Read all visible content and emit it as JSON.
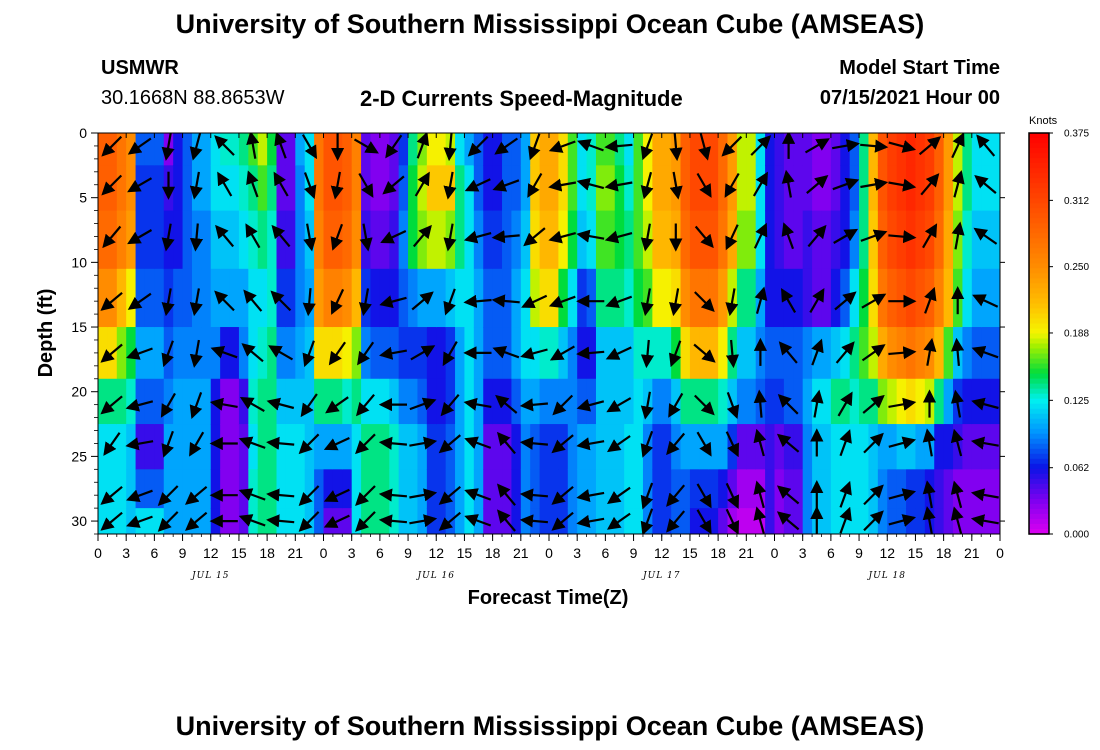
{
  "header": {
    "title_top": "University of Southern Mississippi Ocean Cube (AMSEAS)",
    "title_bottom": "University of Southern Mississippi Ocean Cube (AMSEAS)",
    "station": "USMWR",
    "coords": "30.1668N  88.8653W",
    "subtitle": "2-D Currents Speed-Magnitude",
    "model_start_label": "Model Start Time",
    "model_start_value": "07/15/2021 Hour 00"
  },
  "chart_data": {
    "type": "heatmap",
    "title": "2-D Currents Speed-Magnitude",
    "xlabel": "Forecast Time(Z)",
    "ylabel": "Depth (ft)",
    "x_hours_range": [
      0,
      96
    ],
    "ylim": [
      0,
      31
    ],
    "x_tick_labels": [
      "0",
      "3",
      "6",
      "9",
      "12",
      "15",
      "18",
      "21",
      "0",
      "3",
      "6",
      "9",
      "12",
      "15",
      "18",
      "21",
      "0",
      "3",
      "6",
      "9",
      "12",
      "15",
      "18",
      "21",
      "0",
      "3",
      "6",
      "9",
      "12",
      "15",
      "18",
      "21",
      "0"
    ],
    "day_labels": [
      {
        "label": "JUL 15",
        "hour": 12
      },
      {
        "label": "JUL 16",
        "hour": 36
      },
      {
        "label": "JUL 17",
        "hour": 60
      },
      {
        "label": "JUL 18",
        "hour": 84
      }
    ],
    "y_ticks": [
      0,
      5,
      10,
      15,
      20,
      25,
      30
    ],
    "colorbar": {
      "unit": "Knots",
      "min": 0.0,
      "max": 0.375,
      "tick_labels": [
        "0.375",
        "0.312",
        "0.250",
        "0.188",
        "0.125",
        "0.062",
        "0.000"
      ],
      "tick_values": [
        0.375,
        0.312,
        0.25,
        0.188,
        0.125,
        0.062,
        0.0
      ]
    },
    "depth_levels_ft": [
      1,
      4,
      8,
      13,
      17,
      21,
      24,
      28,
      30
    ],
    "speed_grid_columns_hourly": [
      [
        0.29,
        0.29,
        0.28,
        0.25,
        0.2,
        0.14,
        0.12,
        0.12,
        0.12
      ],
      [
        0.29,
        0.29,
        0.28,
        0.25,
        0.2,
        0.14,
        0.12,
        0.12,
        0.12
      ],
      [
        0.27,
        0.27,
        0.26,
        0.22,
        0.17,
        0.14,
        0.12,
        0.12,
        0.12
      ],
      [
        0.25,
        0.25,
        0.24,
        0.19,
        0.15,
        0.13,
        0.11,
        0.11,
        0.11
      ],
      [
        0.08,
        0.07,
        0.07,
        0.08,
        0.1,
        0.08,
        0.05,
        0.08,
        0.12
      ],
      [
        0.08,
        0.07,
        0.07,
        0.08,
        0.1,
        0.08,
        0.05,
        0.08,
        0.12
      ],
      [
        0.08,
        0.07,
        0.07,
        0.08,
        0.1,
        0.08,
        0.05,
        0.08,
        0.12
      ],
      [
        0.03,
        0.05,
        0.06,
        0.07,
        0.08,
        0.09,
        0.1,
        0.1,
        0.1
      ],
      [
        0.06,
        0.06,
        0.06,
        0.08,
        0.09,
        0.1,
        0.1,
        0.1,
        0.1
      ],
      [
        0.08,
        0.08,
        0.08,
        0.08,
        0.09,
        0.1,
        0.1,
        0.1,
        0.1
      ],
      [
        0.1,
        0.1,
        0.09,
        0.09,
        0.09,
        0.1,
        0.1,
        0.1,
        0.1
      ],
      [
        0.1,
        0.1,
        0.09,
        0.09,
        0.09,
        0.1,
        0.1,
        0.1,
        0.1
      ],
      [
        0.12,
        0.12,
        0.11,
        0.1,
        0.09,
        0.06,
        0.06,
        0.06,
        0.06
      ],
      [
        0.13,
        0.12,
        0.11,
        0.1,
        0.06,
        0.03,
        0.03,
        0.03,
        0.03
      ],
      [
        0.13,
        0.12,
        0.11,
        0.1,
        0.06,
        0.03,
        0.03,
        0.03,
        0.03
      ],
      [
        0.14,
        0.13,
        0.12,
        0.1,
        0.09,
        0.05,
        0.04,
        0.04,
        0.04
      ],
      [
        0.16,
        0.14,
        0.13,
        0.12,
        0.12,
        0.13,
        0.12,
        0.13,
        0.13
      ],
      [
        0.18,
        0.16,
        0.14,
        0.12,
        0.13,
        0.14,
        0.14,
        0.14,
        0.14
      ],
      [
        0.15,
        0.14,
        0.13,
        0.13,
        0.14,
        0.14,
        0.14,
        0.14,
        0.14
      ],
      [
        0.04,
        0.04,
        0.05,
        0.07,
        0.09,
        0.11,
        0.12,
        0.12,
        0.12
      ],
      [
        0.04,
        0.04,
        0.05,
        0.07,
        0.09,
        0.11,
        0.12,
        0.12,
        0.12
      ],
      [
        0.1,
        0.09,
        0.09,
        0.09,
        0.1,
        0.11,
        0.12,
        0.12,
        0.12
      ],
      [
        0.12,
        0.12,
        0.11,
        0.1,
        0.11,
        0.11,
        0.11,
        0.11,
        0.11
      ],
      [
        0.27,
        0.27,
        0.26,
        0.24,
        0.2,
        0.14,
        0.1,
        0.08,
        0.08
      ],
      [
        0.3,
        0.3,
        0.29,
        0.26,
        0.2,
        0.14,
        0.1,
        0.06,
        0.04
      ],
      [
        0.3,
        0.3,
        0.29,
        0.26,
        0.2,
        0.14,
        0.1,
        0.06,
        0.04
      ],
      [
        0.29,
        0.29,
        0.28,
        0.25,
        0.19,
        0.13,
        0.1,
        0.06,
        0.04
      ],
      [
        0.26,
        0.26,
        0.25,
        0.22,
        0.17,
        0.14,
        0.12,
        0.12,
        0.12
      ],
      [
        0.04,
        0.04,
        0.05,
        0.07,
        0.09,
        0.12,
        0.14,
        0.14,
        0.14
      ],
      [
        0.03,
        0.03,
        0.04,
        0.06,
        0.08,
        0.12,
        0.14,
        0.14,
        0.14
      ],
      [
        0.03,
        0.03,
        0.04,
        0.06,
        0.08,
        0.12,
        0.14,
        0.14,
        0.14
      ],
      [
        0.04,
        0.04,
        0.05,
        0.06,
        0.08,
        0.11,
        0.13,
        0.13,
        0.13
      ],
      [
        0.07,
        0.08,
        0.09,
        0.08,
        0.07,
        0.09,
        0.11,
        0.11,
        0.11
      ],
      [
        0.14,
        0.15,
        0.15,
        0.09,
        0.07,
        0.09,
        0.11,
        0.11,
        0.11
      ],
      [
        0.17,
        0.18,
        0.17,
        0.1,
        0.07,
        0.08,
        0.1,
        0.1,
        0.1
      ],
      [
        0.19,
        0.21,
        0.18,
        0.1,
        0.06,
        0.06,
        0.07,
        0.07,
        0.07
      ],
      [
        0.19,
        0.21,
        0.18,
        0.1,
        0.06,
        0.06,
        0.07,
        0.07,
        0.07
      ],
      [
        0.18,
        0.21,
        0.17,
        0.11,
        0.07,
        0.07,
        0.08,
        0.08,
        0.08
      ],
      [
        0.12,
        0.14,
        0.14,
        0.12,
        0.1,
        0.1,
        0.1,
        0.1,
        0.1
      ],
      [
        0.1,
        0.12,
        0.12,
        0.12,
        0.12,
        0.12,
        0.12,
        0.12,
        0.12
      ],
      [
        0.08,
        0.08,
        0.09,
        0.1,
        0.1,
        0.1,
        0.1,
        0.1,
        0.1
      ],
      [
        0.06,
        0.06,
        0.07,
        0.08,
        0.08,
        0.06,
        0.04,
        0.04,
        0.04
      ],
      [
        0.06,
        0.06,
        0.07,
        0.08,
        0.08,
        0.06,
        0.04,
        0.04,
        0.04
      ],
      [
        0.08,
        0.08,
        0.08,
        0.08,
        0.08,
        0.06,
        0.04,
        0.04,
        0.04
      ],
      [
        0.08,
        0.08,
        0.09,
        0.1,
        0.1,
        0.08,
        0.06,
        0.06,
        0.06
      ],
      [
        0.1,
        0.1,
        0.11,
        0.12,
        0.12,
        0.1,
        0.09,
        0.09,
        0.09
      ],
      [
        0.21,
        0.21,
        0.2,
        0.18,
        0.12,
        0.1,
        0.08,
        0.08,
        0.08
      ],
      [
        0.23,
        0.23,
        0.22,
        0.2,
        0.13,
        0.09,
        0.07,
        0.07,
        0.07
      ],
      [
        0.23,
        0.23,
        0.22,
        0.2,
        0.13,
        0.09,
        0.07,
        0.07,
        0.07
      ],
      [
        0.2,
        0.2,
        0.19,
        0.15,
        0.11,
        0.09,
        0.07,
        0.07,
        0.07
      ],
      [
        0.16,
        0.16,
        0.15,
        0.12,
        0.09,
        0.09,
        0.09,
        0.09,
        0.09
      ],
      [
        0.12,
        0.12,
        0.11,
        0.07,
        0.06,
        0.08,
        0.1,
        0.1,
        0.1
      ],
      [
        0.13,
        0.13,
        0.12,
        0.08,
        0.06,
        0.08,
        0.1,
        0.1,
        0.1
      ],
      [
        0.16,
        0.17,
        0.16,
        0.14,
        0.11,
        0.11,
        0.11,
        0.11,
        0.11
      ],
      [
        0.16,
        0.17,
        0.16,
        0.14,
        0.11,
        0.11,
        0.11,
        0.11,
        0.11
      ],
      [
        0.14,
        0.15,
        0.15,
        0.14,
        0.11,
        0.11,
        0.11,
        0.11,
        0.11
      ],
      [
        0.12,
        0.13,
        0.14,
        0.13,
        0.11,
        0.11,
        0.12,
        0.12,
        0.12
      ],
      [
        0.16,
        0.16,
        0.16,
        0.15,
        0.13,
        0.12,
        0.12,
        0.12,
        0.12
      ],
      [
        0.19,
        0.19,
        0.18,
        0.16,
        0.13,
        0.11,
        0.09,
        0.09,
        0.09
      ],
      [
        0.23,
        0.23,
        0.22,
        0.19,
        0.13,
        0.09,
        0.07,
        0.07,
        0.07
      ],
      [
        0.23,
        0.23,
        0.22,
        0.19,
        0.13,
        0.09,
        0.07,
        0.07,
        0.07
      ],
      [
        0.24,
        0.24,
        0.23,
        0.2,
        0.15,
        0.11,
        0.09,
        0.08,
        0.08
      ],
      [
        0.29,
        0.29,
        0.28,
        0.25,
        0.2,
        0.14,
        0.1,
        0.08,
        0.08
      ],
      [
        0.31,
        0.31,
        0.3,
        0.27,
        0.22,
        0.14,
        0.1,
        0.07,
        0.06
      ],
      [
        0.31,
        0.31,
        0.3,
        0.27,
        0.22,
        0.14,
        0.1,
        0.07,
        0.06
      ],
      [
        0.31,
        0.31,
        0.3,
        0.27,
        0.22,
        0.14,
        0.1,
        0.07,
        0.06
      ],
      [
        0.28,
        0.28,
        0.27,
        0.24,
        0.19,
        0.13,
        0.1,
        0.06,
        0.04
      ],
      [
        0.24,
        0.24,
        0.23,
        0.18,
        0.14,
        0.11,
        0.07,
        0.04,
        0.02
      ],
      [
        0.18,
        0.18,
        0.17,
        0.14,
        0.11,
        0.09,
        0.04,
        0.02,
        0.01
      ],
      [
        0.18,
        0.18,
        0.17,
        0.14,
        0.11,
        0.09,
        0.04,
        0.02,
        0.01
      ],
      [
        0.12,
        0.12,
        0.12,
        0.1,
        0.09,
        0.08,
        0.04,
        0.02,
        0.01
      ],
      [
        0.06,
        0.06,
        0.06,
        0.06,
        0.08,
        0.07,
        0.05,
        0.05,
        0.05
      ],
      [
        0.05,
        0.05,
        0.05,
        0.06,
        0.08,
        0.07,
        0.04,
        0.03,
        0.03
      ],
      [
        0.04,
        0.04,
        0.04,
        0.06,
        0.08,
        0.08,
        0.05,
        0.04,
        0.04
      ],
      [
        0.04,
        0.04,
        0.04,
        0.06,
        0.08,
        0.08,
        0.05,
        0.04,
        0.04
      ],
      [
        0.04,
        0.04,
        0.05,
        0.05,
        0.09,
        0.1,
        0.09,
        0.09,
        0.09
      ],
      [
        0.03,
        0.03,
        0.04,
        0.04,
        0.1,
        0.12,
        0.11,
        0.11,
        0.11
      ],
      [
        0.03,
        0.03,
        0.04,
        0.04,
        0.1,
        0.12,
        0.11,
        0.11,
        0.11
      ],
      [
        0.04,
        0.04,
        0.05,
        0.06,
        0.11,
        0.14,
        0.12,
        0.12,
        0.12
      ],
      [
        0.06,
        0.06,
        0.06,
        0.08,
        0.12,
        0.14,
        0.12,
        0.12,
        0.12
      ],
      [
        0.08,
        0.08,
        0.09,
        0.12,
        0.14,
        0.13,
        0.12,
        0.12,
        0.12
      ],
      [
        0.14,
        0.14,
        0.14,
        0.15,
        0.16,
        0.14,
        0.12,
        0.12,
        0.12
      ],
      [
        0.22,
        0.22,
        0.21,
        0.2,
        0.18,
        0.14,
        0.11,
        0.11,
        0.11
      ],
      [
        0.3,
        0.3,
        0.29,
        0.27,
        0.23,
        0.17,
        0.1,
        0.09,
        0.09
      ],
      [
        0.32,
        0.32,
        0.31,
        0.29,
        0.25,
        0.18,
        0.1,
        0.08,
        0.08
      ],
      [
        0.33,
        0.33,
        0.32,
        0.3,
        0.26,
        0.19,
        0.11,
        0.08,
        0.08
      ],
      [
        0.34,
        0.34,
        0.33,
        0.31,
        0.27,
        0.2,
        0.11,
        0.07,
        0.07
      ],
      [
        0.33,
        0.33,
        0.32,
        0.3,
        0.26,
        0.19,
        0.1,
        0.07,
        0.07
      ],
      [
        0.32,
        0.32,
        0.31,
        0.29,
        0.25,
        0.18,
        0.1,
        0.06,
        0.06
      ],
      [
        0.29,
        0.29,
        0.28,
        0.26,
        0.22,
        0.14,
        0.06,
        0.05,
        0.05
      ],
      [
        0.24,
        0.24,
        0.23,
        0.22,
        0.16,
        0.1,
        0.06,
        0.04,
        0.04
      ],
      [
        0.18,
        0.18,
        0.17,
        0.16,
        0.11,
        0.07,
        0.05,
        0.03,
        0.03
      ],
      [
        0.14,
        0.14,
        0.13,
        0.12,
        0.09,
        0.06,
        0.04,
        0.03,
        0.03
      ],
      [
        0.12,
        0.12,
        0.11,
        0.1,
        0.08,
        0.06,
        0.04,
        0.03,
        0.03
      ],
      [
        0.12,
        0.12,
        0.11,
        0.1,
        0.08,
        0.06,
        0.04,
        0.03,
        0.03
      ],
      [
        0.12,
        0.12,
        0.11,
        0.1,
        0.08,
        0.06,
        0.04,
        0.03,
        0.03
      ]
    ],
    "vector_direction_deg_by_3h_and_depth": [
      [
        135,
        135,
        130,
        140,
        140,
        140,
        125,
        140,
        140
      ],
      [
        145,
        150,
        150,
        145,
        160,
        165,
        170,
        160,
        160
      ],
      [
        100,
        90,
        100,
        100,
        110,
        120,
        110,
        135,
        135
      ],
      [
        105,
        100,
        95,
        100,
        100,
        110,
        120,
        140,
        140
      ],
      [
        225,
        240,
        230,
        225,
        200,
        190,
        180,
        180,
        180
      ],
      [
        260,
        250,
        240,
        230,
        220,
        210,
        200,
        200,
        200
      ],
      [
        250,
        240,
        230,
        225,
        210,
        195,
        185,
        185,
        185
      ],
      [
        60,
        70,
        80,
        95,
        110,
        125,
        135,
        135,
        135
      ],
      [
        90,
        100,
        110,
        115,
        125,
        145,
        155,
        155,
        155
      ],
      [
        30,
        60,
        80,
        100,
        125,
        130,
        135,
        135,
        135
      ],
      [
        125,
        140,
        155,
        165,
        170,
        180,
        185,
        185,
        185
      ],
      [
        290,
        300,
        310,
        320,
        330,
        340,
        350,
        350,
        350
      ],
      [
        95,
        100,
        100,
        110,
        120,
        130,
        140,
        140,
        140
      ],
      [
        135,
        155,
        165,
        175,
        180,
        190,
        200,
        200,
        200
      ],
      [
        145,
        160,
        175,
        185,
        200,
        220,
        230,
        230,
        230
      ],
      [
        110,
        120,
        140,
        155,
        165,
        175,
        185,
        185,
        185
      ],
      [
        160,
        170,
        165,
        160,
        150,
        135,
        140,
        140,
        140
      ],
      [
        200,
        195,
        190,
        180,
        175,
        165,
        170,
        170,
        170
      ],
      [
        175,
        170,
        165,
        160,
        155,
        150,
        145,
        145,
        145
      ],
      [
        110,
        105,
        100,
        100,
        95,
        100,
        110,
        110,
        110
      ],
      [
        85,
        80,
        90,
        100,
        110,
        120,
        130,
        130,
        130
      ],
      [
        75,
        60,
        50,
        45,
        40,
        45,
        60,
        60,
        60
      ],
      [
        135,
        120,
        115,
        100,
        85,
        70,
        65,
        65,
        65
      ],
      [
        315,
        300,
        295,
        285,
        270,
        265,
        255,
        255,
        255
      ],
      [
        270,
        260,
        250,
        240,
        230,
        225,
        220,
        220,
        220
      ],
      [
        330,
        320,
        310,
        300,
        290,
        280,
        270,
        270,
        270
      ],
      [
        350,
        340,
        330,
        320,
        310,
        300,
        290,
        290,
        290
      ],
      [
        5,
        350,
        340,
        330,
        325,
        320,
        315,
        315,
        315
      ],
      [
        15,
        10,
        5,
        0,
        355,
        350,
        345,
        345,
        345
      ],
      [
        320,
        310,
        300,
        290,
        280,
        270,
        260,
        260,
        260
      ],
      [
        295,
        285,
        280,
        270,
        265,
        260,
        255,
        255,
        255
      ],
      [
        230,
        220,
        215,
        205,
        200,
        195,
        190,
        190,
        190
      ]
    ]
  }
}
